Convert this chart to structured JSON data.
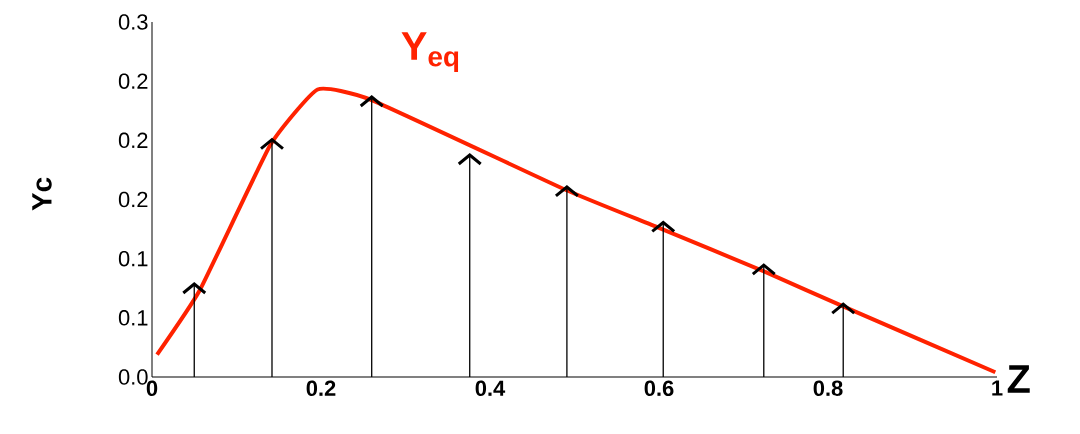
{
  "chart_data": {
    "type": "line",
    "xlabel": "Z",
    "ylabel": "Yc",
    "series": [
      {
        "name": "Y$_{eq}$",
        "color": "#ff2200",
        "x": [
          0.006,
          0.057,
          0.14,
          0.196,
          0.26,
          0.49,
          0.6,
          0.725,
          0.82,
          0.998
        ],
        "values": [
          0.019,
          0.074,
          0.196,
          0.243,
          0.234,
          0.158,
          0.126,
          0.089,
          0.059,
          0.004
        ]
      },
      {
        "type": "lollipop",
        "color": "#000000",
        "x": [
          0.05,
          0.142,
          0.26,
          0.376,
          0.491,
          0.605,
          0.724,
          0.818
        ],
        "values": [
          0.076,
          0.198,
          0.234,
          0.185,
          0.158,
          0.128,
          0.092,
          0.059
        ]
      }
    ],
    "xlim": [
      0,
      1
    ],
    "ylim": [
      0,
      0.3
    ],
    "xticks": [
      0,
      0.2,
      0.4,
      0.6,
      0.8,
      1
    ],
    "yticks": [
      {
        "value": 0,
        "label": "0.0"
      },
      {
        "value": 0.05,
        "label": "0.1"
      },
      {
        "value": 0.1,
        "label": "0.1"
      },
      {
        "value": 0.15,
        "label": "0.2"
      },
      {
        "value": 0.2,
        "label": "0.2"
      },
      {
        "value": 0.25,
        "label": "0.2"
      },
      {
        "value": 0.3,
        "label": "0.3"
      }
    ],
    "grid": false
  }
}
